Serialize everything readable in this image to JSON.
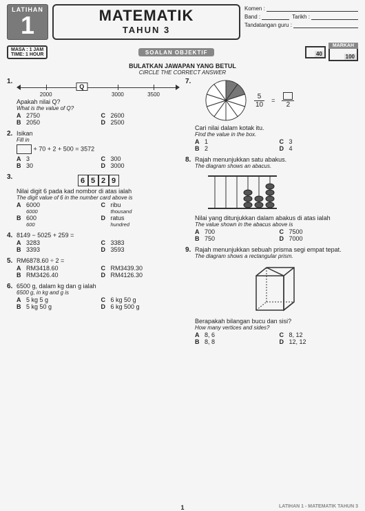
{
  "header": {
    "badge_label": "LATIHAN",
    "badge_number": "1",
    "title_main": "MATEMATIK",
    "title_sub": "TAHUN 3",
    "comment_label": "Komen :",
    "band_label": "Band :",
    "date_label": "Tarikh :",
    "sign_label": "Tandatangan guru :",
    "masa_l1": "MASA : 1 JAM",
    "masa_l2": "TIME: 1 HOUR",
    "soalan_label": "SOALAN OBJEKTIF",
    "score_part": "40",
    "markah_label": "MARKAH",
    "markah_total": "100",
    "instr_bm": "BULATKAN JAWAPAN YANG BETUL",
    "instr_en": "CIRCLE THE CORRECT ANSWER"
  },
  "q1": {
    "num": "1.",
    "ticks": [
      "2000",
      "Q",
      "3000",
      "3500"
    ],
    "prompt_bm": "Apakah nilai Q?",
    "prompt_en": "What is the value of Q?",
    "A": "2750",
    "B": "2050",
    "C": "2600",
    "D": "2500"
  },
  "q2": {
    "num": "2.",
    "title": "Isikan",
    "title_en": "Fill in",
    "eq_tail": " + 70 + 2 + 500 = 3572",
    "A": "3",
    "B": "30",
    "C": "300",
    "D": "3000"
  },
  "q3": {
    "num": "3.",
    "cards": [
      "6",
      "5",
      "2",
      "9"
    ],
    "prompt_bm": "Nilai digit 6 pada kad nombor di atas ialah",
    "prompt_en": "The digit value of 6 in the number card above is",
    "A": "6000",
    "A_en": "6000",
    "B": "600",
    "B_en": "600",
    "C": "ribu",
    "C_en": "thousand",
    "D": "ratus",
    "D_en": "hundred"
  },
  "q4": {
    "num": "4.",
    "prompt": "8149 − 5025 + 259 =",
    "A": "3283",
    "B": "3393",
    "C": "3383",
    "D": "3593"
  },
  "q5": {
    "num": "5.",
    "prompt": "RM6878.60 ÷ 2 =",
    "A": "RM3418.60",
    "B": "RM3426.40",
    "C": "RM3439.30",
    "D": "RM4126.30"
  },
  "q6": {
    "num": "6.",
    "prompt_bm": "6500 g, dalam kg dan g ialah",
    "prompt_en": "6500 g, in kg and g is",
    "A": "5 kg 5 g",
    "B": "5 kg 50 g",
    "C": "6 kg 50 g",
    "D": "6 kg 500 g"
  },
  "q7": {
    "num": "7.",
    "pie": {
      "slices": 10,
      "shaded": [
        0,
        1
      ],
      "colors": {
        "shade": "#777",
        "line": "#333"
      }
    },
    "frac_n": "5",
    "frac_d": "10",
    "frac_d2": "2",
    "prompt_bm": "Cari nilai dalam kotak itu.",
    "prompt_en": "Find the value in the box.",
    "A": "1",
    "B": "2",
    "C": "3",
    "D": "4"
  },
  "q8": {
    "num": "8.",
    "prompt_bm": "Rajah menunjukkan satu abakus.",
    "prompt_en": "The diagram shows an abacus.",
    "prompt2_bm": "Nilai yang ditunjukkan dalam abakus di atas ialah",
    "prompt2_en": "The value shown in the abacus above is",
    "beads": [
      0,
      0,
      0,
      3,
      2,
      4
    ],
    "A": "700",
    "B": "750",
    "C": "7500",
    "D": "7000"
  },
  "q9": {
    "num": "9.",
    "prompt_bm": "Rajah menunjukkan sebuah prisma segi empat tepat.",
    "prompt_en": "The diagram shows a rectangular prism.",
    "prompt2_bm": "Berapakah bilangan bucu dan sisi?",
    "prompt2_en": "How many vertices and sides?",
    "A": "8, 6",
    "B": "8, 8",
    "C": "8, 12",
    "D": "12, 12"
  },
  "footer": {
    "page": "1",
    "tag": "LATIHAN 1 - MATEMATIK TAHUN 3"
  }
}
